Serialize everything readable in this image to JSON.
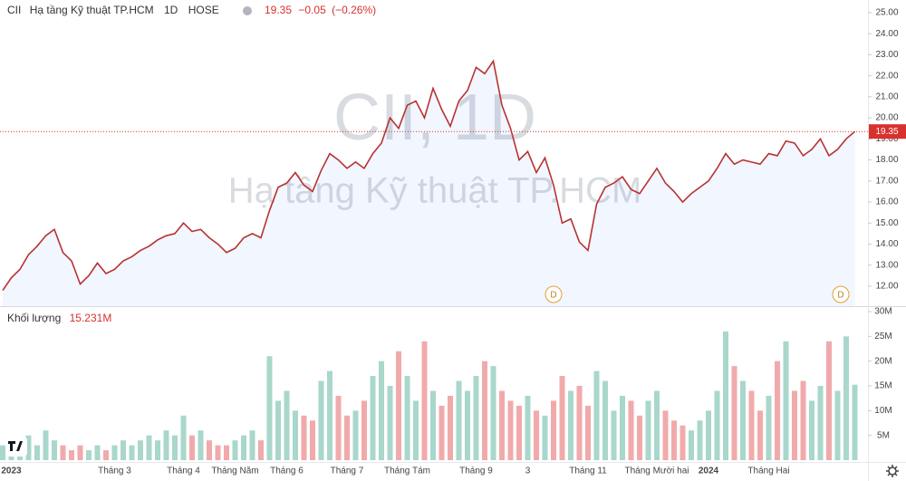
{
  "chart_data": {
    "type": "line",
    "name": "Hạ tầng Kỹ thuật TP.HCM",
    "interval": "1D",
    "exchange": "HOSE",
    "watermark": "CII, 1D",
    "last_price": 19.35,
    "change": "−0.05",
    "change_percent": "(−0.26%)",
    "events": [
      "D",
      "D"
    ],
    "categories": [
      null,
      "2023",
      null,
      null,
      null,
      null,
      null,
      null,
      null,
      null,
      null,
      null,
      null,
      "Tháng 3",
      null,
      null,
      null,
      null,
      null,
      null,
      null,
      "Tháng 4",
      null,
      null,
      null,
      null,
      null,
      "Tháng Năm",
      null,
      null,
      null,
      null,
      null,
      "Tháng 6",
      null,
      null,
      null,
      null,
      null,
      null,
      "Tháng 7",
      null,
      null,
      null,
      null,
      null,
      null,
      "Tháng Tám",
      null,
      null,
      null,
      null,
      null,
      null,
      null,
      "Tháng 9",
      null,
      null,
      null,
      null,
      null,
      "3",
      null,
      null,
      null,
      null,
      null,
      null,
      "Tháng 11",
      null,
      null,
      null,
      null,
      null,
      null,
      null,
      "Tháng Mười hai",
      null,
      null,
      null,
      null,
      null,
      "2024",
      null,
      null,
      null,
      null,
      null,
      null,
      "Tháng Hai",
      null,
      null,
      null,
      null,
      null,
      null,
      null,
      null,
      null,
      null
    ],
    "series": [
      {
        "name": "CII",
        "color": "#b83232",
        "values": [
          11.8,
          12.4,
          12.8,
          13.5,
          13.9,
          14.4,
          14.7,
          13.6,
          13.2,
          12.1,
          12.5,
          13.1,
          12.6,
          12.8,
          13.2,
          13.4,
          13.7,
          13.9,
          14.2,
          14.4,
          14.5,
          15.0,
          14.6,
          14.7,
          14.3,
          14.0,
          13.6,
          13.8,
          14.3,
          14.5,
          14.3,
          15.6,
          16.7,
          16.9,
          17.4,
          16.8,
          16.5,
          17.5,
          18.3,
          18.0,
          17.6,
          17.9,
          17.6,
          18.3,
          18.8,
          20.0,
          19.5,
          20.6,
          20.8,
          20.0,
          21.4,
          20.4,
          19.6,
          20.8,
          21.3,
          22.4,
          22.1,
          22.7,
          20.6,
          19.5,
          18.0,
          18.4,
          17.4,
          18.1,
          16.8,
          15.0,
          15.2,
          14.1,
          13.7,
          15.9,
          16.7,
          16.9,
          17.2,
          16.6,
          16.4,
          17.0,
          17.6,
          16.9,
          16.5,
          16.0,
          16.4,
          16.7,
          17.0,
          17.6,
          18.3,
          17.8,
          18.0,
          17.9,
          17.8,
          18.3,
          18.2,
          18.9,
          18.8,
          18.2,
          18.5,
          19.0,
          18.2,
          18.5,
          19.0,
          19.35
        ]
      },
      {
        "name": "Khối lượng",
        "type": "bar",
        "axis": "y2",
        "up_color": "#a9d7cb",
        "down_color": "#f1aaab",
        "last_value_label": "15.231M",
        "values": [
          3,
          4,
          2,
          5,
          3,
          6,
          4,
          3,
          2,
          3,
          2,
          3,
          2,
          3,
          4,
          3,
          4,
          5,
          4,
          6,
          5,
          9,
          5,
          6,
          4,
          3,
          3,
          4,
          5,
          6,
          4,
          21,
          12,
          14,
          10,
          9,
          8,
          16,
          18,
          13,
          9,
          10,
          12,
          17,
          20,
          15,
          22,
          17,
          12,
          24,
          14,
          11,
          13,
          16,
          14,
          17,
          20,
          19,
          14,
          12,
          11,
          13,
          10,
          9,
          12,
          17,
          14,
          15,
          11,
          18,
          16,
          10,
          13,
          12,
          9,
          12,
          14,
          10,
          8,
          7,
          6,
          8,
          10,
          14,
          26,
          19,
          16,
          14,
          10,
          13,
          20,
          24,
          14,
          16,
          12,
          15,
          24,
          14,
          25,
          15.231
        ]
      }
    ],
    "ylim": [
      11.05,
      25.6
    ],
    "yticks": [
      {
        "value": 12,
        "label": "12.00"
      },
      {
        "value": 13,
        "label": "13.00"
      },
      {
        "value": 14,
        "label": "14.00"
      },
      {
        "value": 15,
        "label": "15.00"
      },
      {
        "value": 16,
        "label": "16.00"
      },
      {
        "value": 17,
        "label": "17.00"
      },
      {
        "value": 18,
        "label": "18.00"
      },
      {
        "value": 19,
        "label": "19.00"
      },
      {
        "value": 20,
        "label": "20.00"
      },
      {
        "value": 21,
        "label": "21.00"
      },
      {
        "value": 22,
        "label": "22.00"
      },
      {
        "value": 23,
        "label": "23.00"
      },
      {
        "value": 24,
        "label": "24.00"
      },
      {
        "value": 25,
        "label": "25.00"
      }
    ],
    "y2lim": [
      0,
      31.1
    ],
    "y2ticks": [
      {
        "value": 5,
        "label": "5M"
      },
      {
        "value": 10,
        "label": "10M"
      },
      {
        "value": 15,
        "label": "15M"
      },
      {
        "value": 20,
        "label": "20M"
      },
      {
        "value": 25,
        "label": "25M"
      },
      {
        "value": 30,
        "label": "30M"
      }
    ]
  }
}
